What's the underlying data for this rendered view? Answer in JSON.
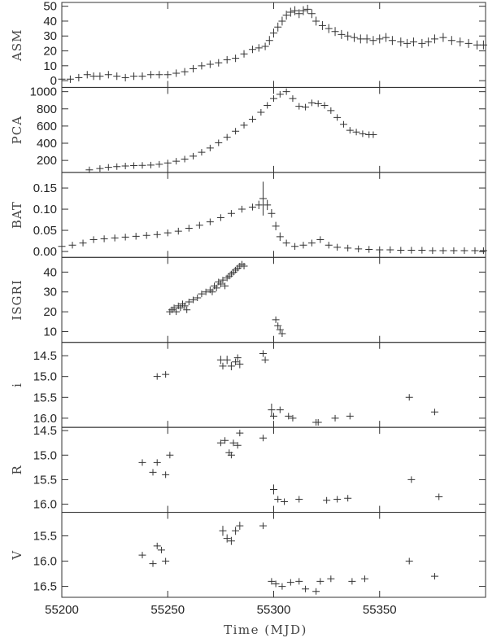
{
  "chart_data": {
    "type": "scatter",
    "xlabel": "Time (MJD)",
    "xlim": [
      55200,
      55400
    ],
    "xticks": [
      55200,
      55250,
      55300,
      55350
    ],
    "marker": "plus",
    "color": "#333333",
    "panels": [
      {
        "ylabel": "ASM",
        "ylim": [
          -4,
          52
        ],
        "yticks": [
          0,
          10,
          20,
          30,
          40,
          50
        ],
        "inverted": false,
        "x": [
          55200,
          55204,
          55208,
          55212,
          55215,
          55218,
          55222,
          55226,
          55230,
          55234,
          55238,
          55242,
          55246,
          55250,
          55254,
          55258,
          55262,
          55266,
          55270,
          55274,
          55278,
          55282,
          55286,
          55290,
          55293,
          55296,
          55298,
          55300,
          55302,
          55304,
          55306,
          55308,
          55310,
          55312,
          55314,
          55316,
          55318,
          55320,
          55323,
          55326,
          55329,
          55332,
          55335,
          55338,
          55341,
          55344,
          55347,
          55350,
          55353,
          55356,
          55360,
          55363,
          55366,
          55370,
          55373,
          55376,
          55380,
          55384,
          55388,
          55392,
          55396,
          55399
        ],
        "y": [
          1,
          1,
          2,
          4,
          3,
          3,
          4,
          3,
          2,
          3,
          3,
          4,
          4,
          4,
          5,
          6,
          8,
          10,
          11,
          12,
          14,
          15,
          18,
          21,
          22,
          23,
          27,
          32,
          36,
          40,
          44,
          46,
          47,
          45,
          47,
          48,
          45,
          40,
          37,
          35,
          33,
          31,
          30,
          29,
          28,
          28,
          27,
          28,
          29,
          27,
          26,
          25,
          26,
          25,
          26,
          28,
          29,
          27,
          26,
          25,
          24,
          24
        ],
        "err": [
          2.5,
          2.5,
          2.5,
          2.5,
          2.5,
          2.5,
          2.5,
          2.5,
          2.5,
          2.5,
          2.5,
          2.5,
          2.5,
          2.5,
          2.5,
          2.5,
          2.5,
          2.5,
          2.5,
          2.5,
          2.5,
          2.5,
          2.5,
          2.5,
          2.5,
          2.5,
          3,
          3,
          3,
          3,
          3,
          3,
          3,
          3,
          3,
          3,
          3,
          3,
          3,
          3,
          3,
          3,
          3,
          3,
          3,
          3,
          3,
          3,
          3,
          3,
          3,
          3,
          3,
          3,
          3,
          3,
          3,
          3,
          3,
          3,
          3,
          3
        ]
      },
      {
        "ylabel": "PCA",
        "ylim": [
          70,
          1040
        ],
        "yticks": [
          200,
          400,
          600,
          800,
          1000
        ],
        "inverted": false,
        "x": [
          55213,
          55218,
          55222,
          55226,
          55230,
          55234,
          55238,
          55242,
          55246,
          55250,
          55254,
          55258,
          55262,
          55266,
          55270,
          55274,
          55278,
          55282,
          55286,
          55290,
          55294,
          55297,
          55300,
          55303,
          55306,
          55309,
          55312,
          55315,
          55318,
          55321,
          55324,
          55327,
          55330,
          55333,
          55336,
          55339,
          55342,
          55345,
          55347
        ],
        "y": [
          90,
          105,
          120,
          128,
          135,
          140,
          142,
          145,
          155,
          170,
          190,
          215,
          250,
          295,
          345,
          405,
          470,
          540,
          610,
          680,
          760,
          840,
          920,
          970,
          1000,
          920,
          830,
          820,
          870,
          860,
          840,
          780,
          700,
          620,
          550,
          530,
          510,
          500,
          500
        ],
        "err": [
          15,
          15,
          15,
          15,
          15,
          15,
          15,
          15,
          15,
          15,
          15,
          15,
          15,
          15,
          15,
          15,
          20,
          20,
          20,
          20,
          20,
          20,
          25,
          25,
          25,
          25,
          25,
          25,
          25,
          25,
          25,
          25,
          25,
          25,
          25,
          25,
          25,
          25,
          25
        ]
      },
      {
        "ylabel": "BAT",
        "ylim": [
          -0.012,
          0.185
        ],
        "yticks": [
          0.0,
          0.05,
          0.1,
          0.15
        ],
        "inverted": false,
        "x": [
          55200,
          55205,
          55210,
          55215,
          55220,
          55225,
          55230,
          55235,
          55240,
          55245,
          55250,
          55255,
          55260,
          55265,
          55270,
          55275,
          55280,
          55285,
          55290,
          55293,
          55295,
          55297,
          55299,
          55301,
          55303,
          55306,
          55310,
          55314,
          55318,
          55322,
          55326,
          55330,
          55335,
          55340,
          55345,
          55350,
          55355,
          55360,
          55365,
          55370,
          55375,
          55380,
          55385,
          55390,
          55395,
          55399
        ],
        "y": [
          0.012,
          0.015,
          0.02,
          0.028,
          0.03,
          0.032,
          0.034,
          0.036,
          0.038,
          0.04,
          0.044,
          0.048,
          0.055,
          0.062,
          0.07,
          0.08,
          0.09,
          0.1,
          0.105,
          0.11,
          0.125,
          0.11,
          0.09,
          0.06,
          0.035,
          0.02,
          0.012,
          0.015,
          0.02,
          0.028,
          0.015,
          0.01,
          0.008,
          0.006,
          0.005,
          0.004,
          0.004,
          0.003,
          0.003,
          0.003,
          0.002,
          0.002,
          0.002,
          0.002,
          0.002,
          0.002
        ],
        "err": [
          0.008,
          0.008,
          0.008,
          0.008,
          0.008,
          0.008,
          0.008,
          0.008,
          0.008,
          0.008,
          0.008,
          0.008,
          0.008,
          0.008,
          0.008,
          0.008,
          0.008,
          0.008,
          0.008,
          0.01,
          0.04,
          0.012,
          0.01,
          0.01,
          0.01,
          0.008,
          0.008,
          0.008,
          0.008,
          0.008,
          0.008,
          0.008,
          0.008,
          0.008,
          0.008,
          0.008,
          0.008,
          0.008,
          0.008,
          0.008,
          0.008,
          0.008,
          0.008,
          0.008,
          0.008,
          0.008
        ]
      },
      {
        "ylabel": "ISGRI",
        "ylim": [
          5,
          47
        ],
        "yticks": [
          10,
          20,
          30,
          40
        ],
        "inverted": false,
        "x": [
          55251,
          55252,
          55253,
          55254,
          55255,
          55256,
          55257,
          55258,
          55259,
          55260,
          55262,
          55264,
          55266,
          55268,
          55270,
          55271,
          55272,
          55273,
          55274,
          55275,
          55276,
          55277,
          55278,
          55279,
          55280,
          55281,
          55282,
          55283,
          55284,
          55285,
          55286,
          55301,
          55302,
          55303,
          55304
        ],
        "y": [
          20,
          21,
          22,
          20,
          23,
          22,
          24,
          23,
          21,
          25,
          26,
          27,
          29,
          30,
          31,
          30,
          33,
          32,
          35,
          34,
          36,
          33,
          37,
          38,
          39,
          40,
          41,
          42,
          43,
          44,
          43,
          16,
          13,
          11,
          9
        ],
        "err": [
          1.5,
          1.5,
          1.5,
          1.5,
          1.5,
          1.5,
          1.5,
          1.5,
          1.5,
          1.5,
          1.5,
          1.5,
          1.5,
          1.5,
          1.5,
          1.5,
          1.5,
          1.5,
          1.5,
          1.5,
          1.5,
          1.5,
          1.5,
          1.5,
          1.5,
          1.5,
          1.5,
          1.5,
          1.5,
          1.5,
          1.5,
          1.2,
          1.2,
          1.2,
          1.2
        ]
      },
      {
        "ylabel": "i",
        "ylim": [
          16.2,
          14.2
        ],
        "yticks": [
          14.5,
          15.0,
          15.5,
          16.0
        ],
        "inverted": true,
        "x": [
          55245,
          55249,
          55275,
          55276,
          55278,
          55280,
          55282,
          55283,
          55284,
          55295,
          55296,
          55299,
          55300,
          55303,
          55307,
          55309,
          55320,
          55321,
          55329,
          55336,
          55364,
          55376
        ],
        "y": [
          15.0,
          14.95,
          14.6,
          14.75,
          14.6,
          14.75,
          14.65,
          14.55,
          14.7,
          14.45,
          14.6,
          15.8,
          15.95,
          15.8,
          15.95,
          16.0,
          16.1,
          16.1,
          16.0,
          15.95,
          15.5,
          15.85
        ],
        "err": [
          0.04,
          0.04,
          0.1,
          0.08,
          0.1,
          0.1,
          0.08,
          0.08,
          0.1,
          0.08,
          0.08,
          0.15,
          0.05,
          0.05,
          0.05,
          0.05,
          0.03,
          0.03,
          0.03,
          0.03,
          0.03,
          0.03
        ]
      },
      {
        "ylabel": "R",
        "ylim": [
          16.15,
          14.45
        ],
        "yticks": [
          14.5,
          15.0,
          15.5,
          16.0
        ],
        "inverted": true,
        "x": [
          55238,
          55243,
          55245,
          55249,
          55251,
          55275,
          55277,
          55279,
          55280,
          55281,
          55283,
          55284,
          55295,
          55300,
          55302,
          55305,
          55312,
          55325,
          55330,
          55335,
          55365,
          55378
        ],
        "y": [
          15.15,
          15.35,
          15.15,
          15.4,
          15.0,
          14.75,
          14.7,
          14.95,
          15.0,
          14.75,
          14.8,
          14.55,
          14.65,
          15.7,
          15.9,
          15.95,
          15.9,
          15.92,
          15.9,
          15.88,
          15.5,
          15.85
        ],
        "err": [
          0.03,
          0.03,
          0.03,
          0.03,
          0.03,
          0.05,
          0.05,
          0.05,
          0.05,
          0.05,
          0.05,
          0.05,
          0.05,
          0.1,
          0.05,
          0.05,
          0.03,
          0.03,
          0.03,
          0.03,
          0.03,
          0.03
        ]
      },
      {
        "ylabel": "V",
        "ylim": [
          16.7,
          15.05
        ],
        "yticks": [
          15.5,
          16.0,
          16.5
        ],
        "inverted": true,
        "x": [
          55238,
          55243,
          55245,
          55247,
          55249,
          55276,
          55278,
          55280,
          55282,
          55284,
          55295,
          55299,
          55301,
          55304,
          55308,
          55312,
          55315,
          55320,
          55322,
          55327,
          55337,
          55343,
          55364,
          55376
        ],
        "y": [
          15.88,
          16.05,
          15.7,
          15.78,
          16.0,
          15.4,
          15.55,
          15.6,
          15.4,
          15.3,
          15.3,
          16.4,
          16.45,
          16.5,
          16.42,
          16.4,
          16.55,
          16.6,
          16.4,
          16.35,
          16.4,
          16.35,
          16.0,
          16.3
        ],
        "err": [
          0.03,
          0.03,
          0.03,
          0.03,
          0.03,
          0.1,
          0.08,
          0.08,
          0.08,
          0.08,
          0.03,
          0.03,
          0.03,
          0.03,
          0.03,
          0.03,
          0.03,
          0.03,
          0.03,
          0.03,
          0.03,
          0.03,
          0.03,
          0.03
        ]
      }
    ]
  }
}
